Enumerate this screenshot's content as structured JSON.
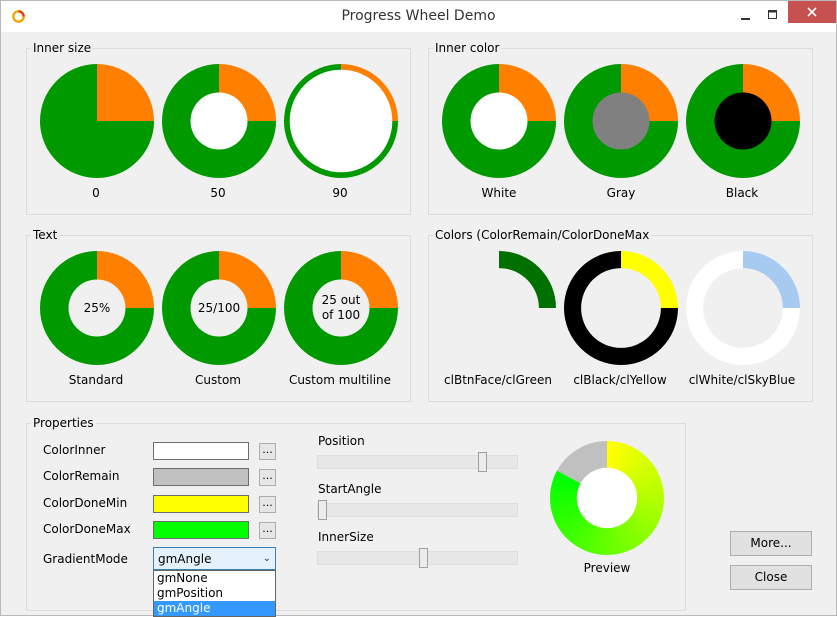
{
  "window": {
    "title": "Progress Wheel Demo"
  },
  "groups": {
    "inner_size": {
      "label": "Inner size",
      "wheels": [
        {
          "caption": "0"
        },
        {
          "caption": "50"
        },
        {
          "caption": "90"
        }
      ]
    },
    "inner_color": {
      "label": "Inner color",
      "wheels": [
        {
          "caption": "White",
          "inner_color": "#ffffff"
        },
        {
          "caption": "Gray",
          "inner_color": "#808080"
        },
        {
          "caption": "Black",
          "inner_color": "#000000"
        }
      ]
    },
    "text": {
      "label": "Text",
      "wheels": [
        {
          "caption": "Standard",
          "text": "25%"
        },
        {
          "caption": "Custom",
          "text": "25/100"
        },
        {
          "caption": "Custom multiline",
          "text_line1": "25 out",
          "text_line2": "of 100"
        }
      ]
    },
    "colors": {
      "label": "Colors (ColorRemain/ColorDoneMax",
      "wheels": [
        {
          "caption": "clBtnFace/clGreen",
          "remain": "#f0f0f0",
          "done": "#007000"
        },
        {
          "caption": "clBlack/clYellow",
          "remain": "#000000",
          "done": "#ffff00"
        },
        {
          "caption": "clWhite/clSkyBlue",
          "remain": "#ffffff",
          "done": "#a6caf0"
        }
      ]
    }
  },
  "wheel_progress": 0.25,
  "colors": {
    "remain_default": "#009900",
    "done_default": "#ff8000"
  },
  "properties": {
    "label": "Properties",
    "rows": [
      {
        "label": "ColorInner",
        "color": "#ffffff"
      },
      {
        "label": "ColorRemain",
        "color": "#c0c0c0"
      },
      {
        "label": "ColorDoneMin",
        "color": "#ffff00"
      },
      {
        "label": "ColorDoneMax",
        "color": "#00ff00"
      }
    ],
    "ellipsis_label": "...",
    "gradient_mode_label": "GradientMode",
    "gradient_mode_value": "gmAngle",
    "gradient_mode_options": [
      "gmNone",
      "gmPosition",
      "gmAngle"
    ],
    "sliders": [
      {
        "label": "Position",
        "value": 0.84
      },
      {
        "label": "StartAngle",
        "value": 0.0
      },
      {
        "label": "InnerSize",
        "value": 0.53
      }
    ],
    "preview": {
      "label": "Preview",
      "progress": 0.83
    }
  },
  "buttons": {
    "more": "More...",
    "close": "Close"
  }
}
